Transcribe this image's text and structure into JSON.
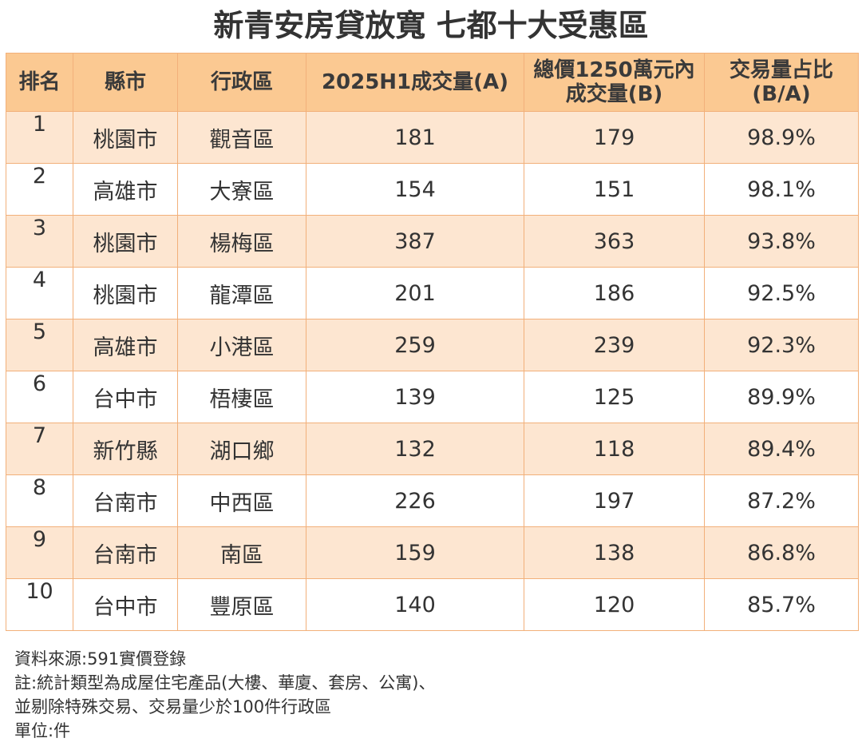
{
  "title": "新青安房貸放寬 七都十大受惠區",
  "chart_data": {
    "type": "table",
    "title": "新青安房貸放寬 七都十大受惠區",
    "columns": [
      "排名",
      "縣市",
      "行政區",
      "2025H1成交量(A)",
      "總價1250萬元內\n成交量(B)",
      "交易量占比\n(B/A)"
    ],
    "rows": [
      {
        "rank": "1",
        "city": "桃園市",
        "district": "觀音區",
        "total": "181",
        "under": "179",
        "ratio": "98.9%"
      },
      {
        "rank": "2",
        "city": "高雄市",
        "district": "大寮區",
        "total": "154",
        "under": "151",
        "ratio": "98.1%"
      },
      {
        "rank": "3",
        "city": "桃園市",
        "district": "楊梅區",
        "total": "387",
        "under": "363",
        "ratio": "93.8%"
      },
      {
        "rank": "4",
        "city": "桃園市",
        "district": "龍潭區",
        "total": "201",
        "under": "186",
        "ratio": "92.5%"
      },
      {
        "rank": "5",
        "city": "高雄市",
        "district": "小港區",
        "total": "259",
        "under": "239",
        "ratio": "92.3%"
      },
      {
        "rank": "6",
        "city": "台中市",
        "district": "梧棲區",
        "total": "139",
        "under": "125",
        "ratio": "89.9%"
      },
      {
        "rank": "7",
        "city": "新竹縣",
        "district": "湖口鄉",
        "total": "132",
        "under": "118",
        "ratio": "89.4%"
      },
      {
        "rank": "8",
        "city": "台南市",
        "district": "中西區",
        "total": "226",
        "under": "197",
        "ratio": "87.2%"
      },
      {
        "rank": "9",
        "city": "台南市",
        "district": "南區",
        "total": "159",
        "under": "138",
        "ratio": "86.8%"
      },
      {
        "rank": "10",
        "city": "台中市",
        "district": "豐原區",
        "total": "140",
        "under": "120",
        "ratio": "85.7%"
      }
    ]
  },
  "notes": [
    "資料來源:591實價登錄",
    "註:統計類型為成屋住宅產品(大樓、華廈、套房、公寓)、",
    "並剔除特殊交易、交易量少於100件行政區",
    "單位:件"
  ],
  "colors": {
    "header_bg": "#fbc992",
    "band_bg": "#fde6d1",
    "border": "#f2b07a"
  }
}
